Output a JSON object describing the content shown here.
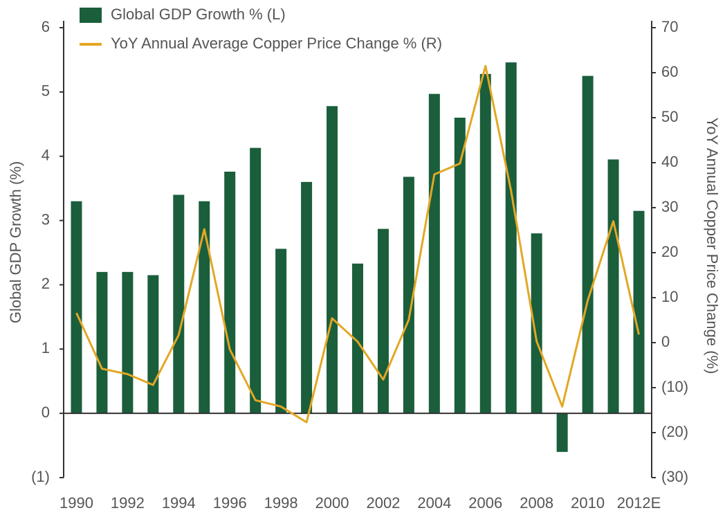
{
  "chart_data": {
    "type": "combo",
    "categories": [
      "1990",
      null,
      "1992",
      null,
      "1994",
      null,
      "1996",
      null,
      "1998",
      null,
      "2000",
      null,
      "2002",
      null,
      "2004",
      null,
      "2006",
      null,
      "2008",
      null,
      "2010",
      null,
      "2012E"
    ],
    "series": [
      {
        "name": "Global GDP Growth % (L)",
        "type": "bar",
        "color": "#1a5e3c",
        "values": [
          3.3,
          2.2,
          2.2,
          2.15,
          3.4,
          3.3,
          3.76,
          4.13,
          2.56,
          3.6,
          4.78,
          2.33,
          2.87,
          3.68,
          4.97,
          4.6,
          5.28,
          5.46,
          2.8,
          -0.6,
          5.25,
          3.95,
          3.15
        ]
      },
      {
        "name": "YoY Annual Average Copper Price Change % (R)",
        "type": "line",
        "axis": "y2",
        "color": "#e3a724",
        "values": [
          6.6,
          -5.8,
          -7,
          -9.4,
          1.7,
          25.2,
          -1.5,
          -12.8,
          -14.2,
          -17.7,
          5.4,
          0.2,
          -8.2,
          5.1,
          37.4,
          39.8,
          61.5,
          33.8,
          0.3,
          -14.2,
          9.4,
          27,
          1.8
        ]
      }
    ],
    "ylabel": "Global GDP Growth (%)",
    "y2label": "YoY Annual Copper Price Change (%)",
    "ylim": [
      -1,
      6
    ],
    "yticks": [
      {
        "value": -1,
        "label": "(1)"
      },
      0,
      1,
      2,
      3,
      4,
      5,
      6
    ],
    "y2lim": [
      -30,
      70
    ],
    "y2ticks": [
      {
        "value": -30,
        "label": "(30)"
      },
      {
        "value": -20,
        "label": "(20)"
      },
      {
        "value": -10,
        "label": "(10)"
      },
      0,
      10,
      20,
      30,
      40,
      50,
      60,
      70
    ],
    "legend": "top-left"
  }
}
